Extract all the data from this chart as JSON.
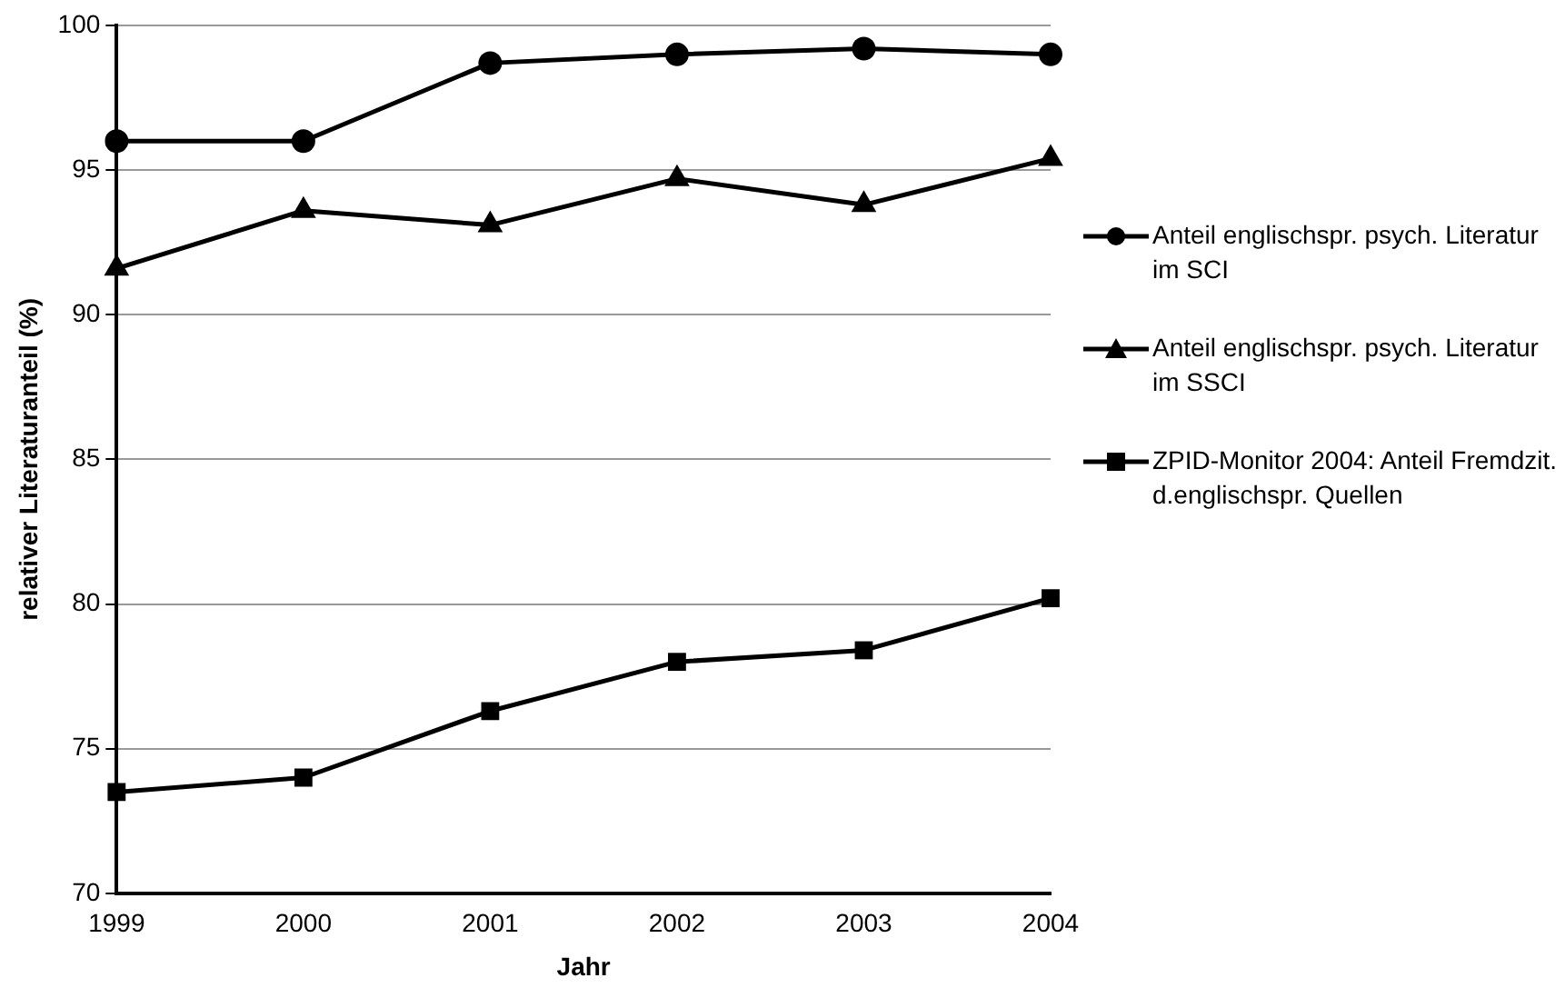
{
  "chart_data": {
    "type": "line",
    "xlabel": "Jahr",
    "ylabel": "relativer Literaturanteil (%)",
    "categories": [
      "1999",
      "2000",
      "2001",
      "2002",
      "2003",
      "2004"
    ],
    "series": [
      {
        "name": "Anteil englischspr. psych. Literatur im SCI",
        "color": "#000000",
        "marker": "circle",
        "values": [
          96.0,
          96.0,
          98.7,
          99.0,
          99.2,
          99.0
        ]
      },
      {
        "name": "Anteil englischspr. psych. Literatur im SSCI",
        "color": "#000000",
        "marker": "triangle",
        "values": [
          91.6,
          93.6,
          93.1,
          94.7,
          93.8,
          95.4
        ]
      },
      {
        "name": "ZPID-Monitor 2004: Anteil Fremdzit. d.englischspr. Quellen",
        "color": "#000000",
        "marker": "square",
        "values": [
          73.5,
          74.0,
          76.3,
          78.0,
          78.4,
          80.2
        ]
      }
    ],
    "ylim": [
      70,
      100
    ],
    "yticks": [
      70,
      75,
      80,
      85,
      90,
      95,
      100
    ],
    "grid": "y",
    "legend": "right",
    "line_style": "solid"
  }
}
